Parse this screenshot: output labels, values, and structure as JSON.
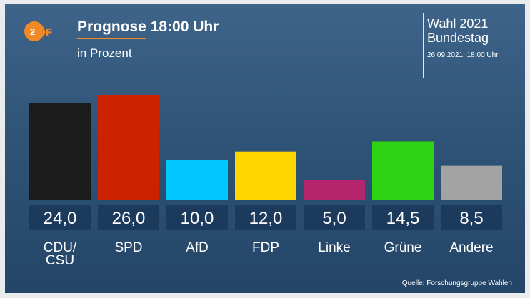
{
  "header": {
    "title_part1": "Prognose",
    "title_part2": "18:00 Uhr",
    "subtitle": "in Prozent"
  },
  "info": {
    "election": "Wahl 2021",
    "body": "Bundestag",
    "datetime": "26.09.2021, 18:00 Uhr"
  },
  "logo": {
    "text": "ZDF",
    "color": "#f08a26"
  },
  "source": "Quelle: Forschungsgruppe Wahlen",
  "chart_data": {
    "type": "bar",
    "categories": [
      "CDU/\nCSU",
      "SPD",
      "AfD",
      "FDP",
      "Linke",
      "Grüne",
      "Andere"
    ],
    "values": [
      24.0,
      26.0,
      10.0,
      12.0,
      5.0,
      14.5,
      8.5
    ],
    "value_labels": [
      "24,0",
      "26,0",
      "10,0",
      "12,0",
      "5,0",
      "14,5",
      "8,5"
    ],
    "colors": [
      "#1c1c1c",
      "#cc2200",
      "#00c8ff",
      "#ffd700",
      "#b5256e",
      "#2fd316",
      "#a3a3a3"
    ],
    "title": "Prognose 18:00 Uhr",
    "subtitle": "in Prozent",
    "xlabel": "",
    "ylabel": "",
    "ylim": [
      0,
      26
    ],
    "grid": false,
    "legend": "none"
  }
}
